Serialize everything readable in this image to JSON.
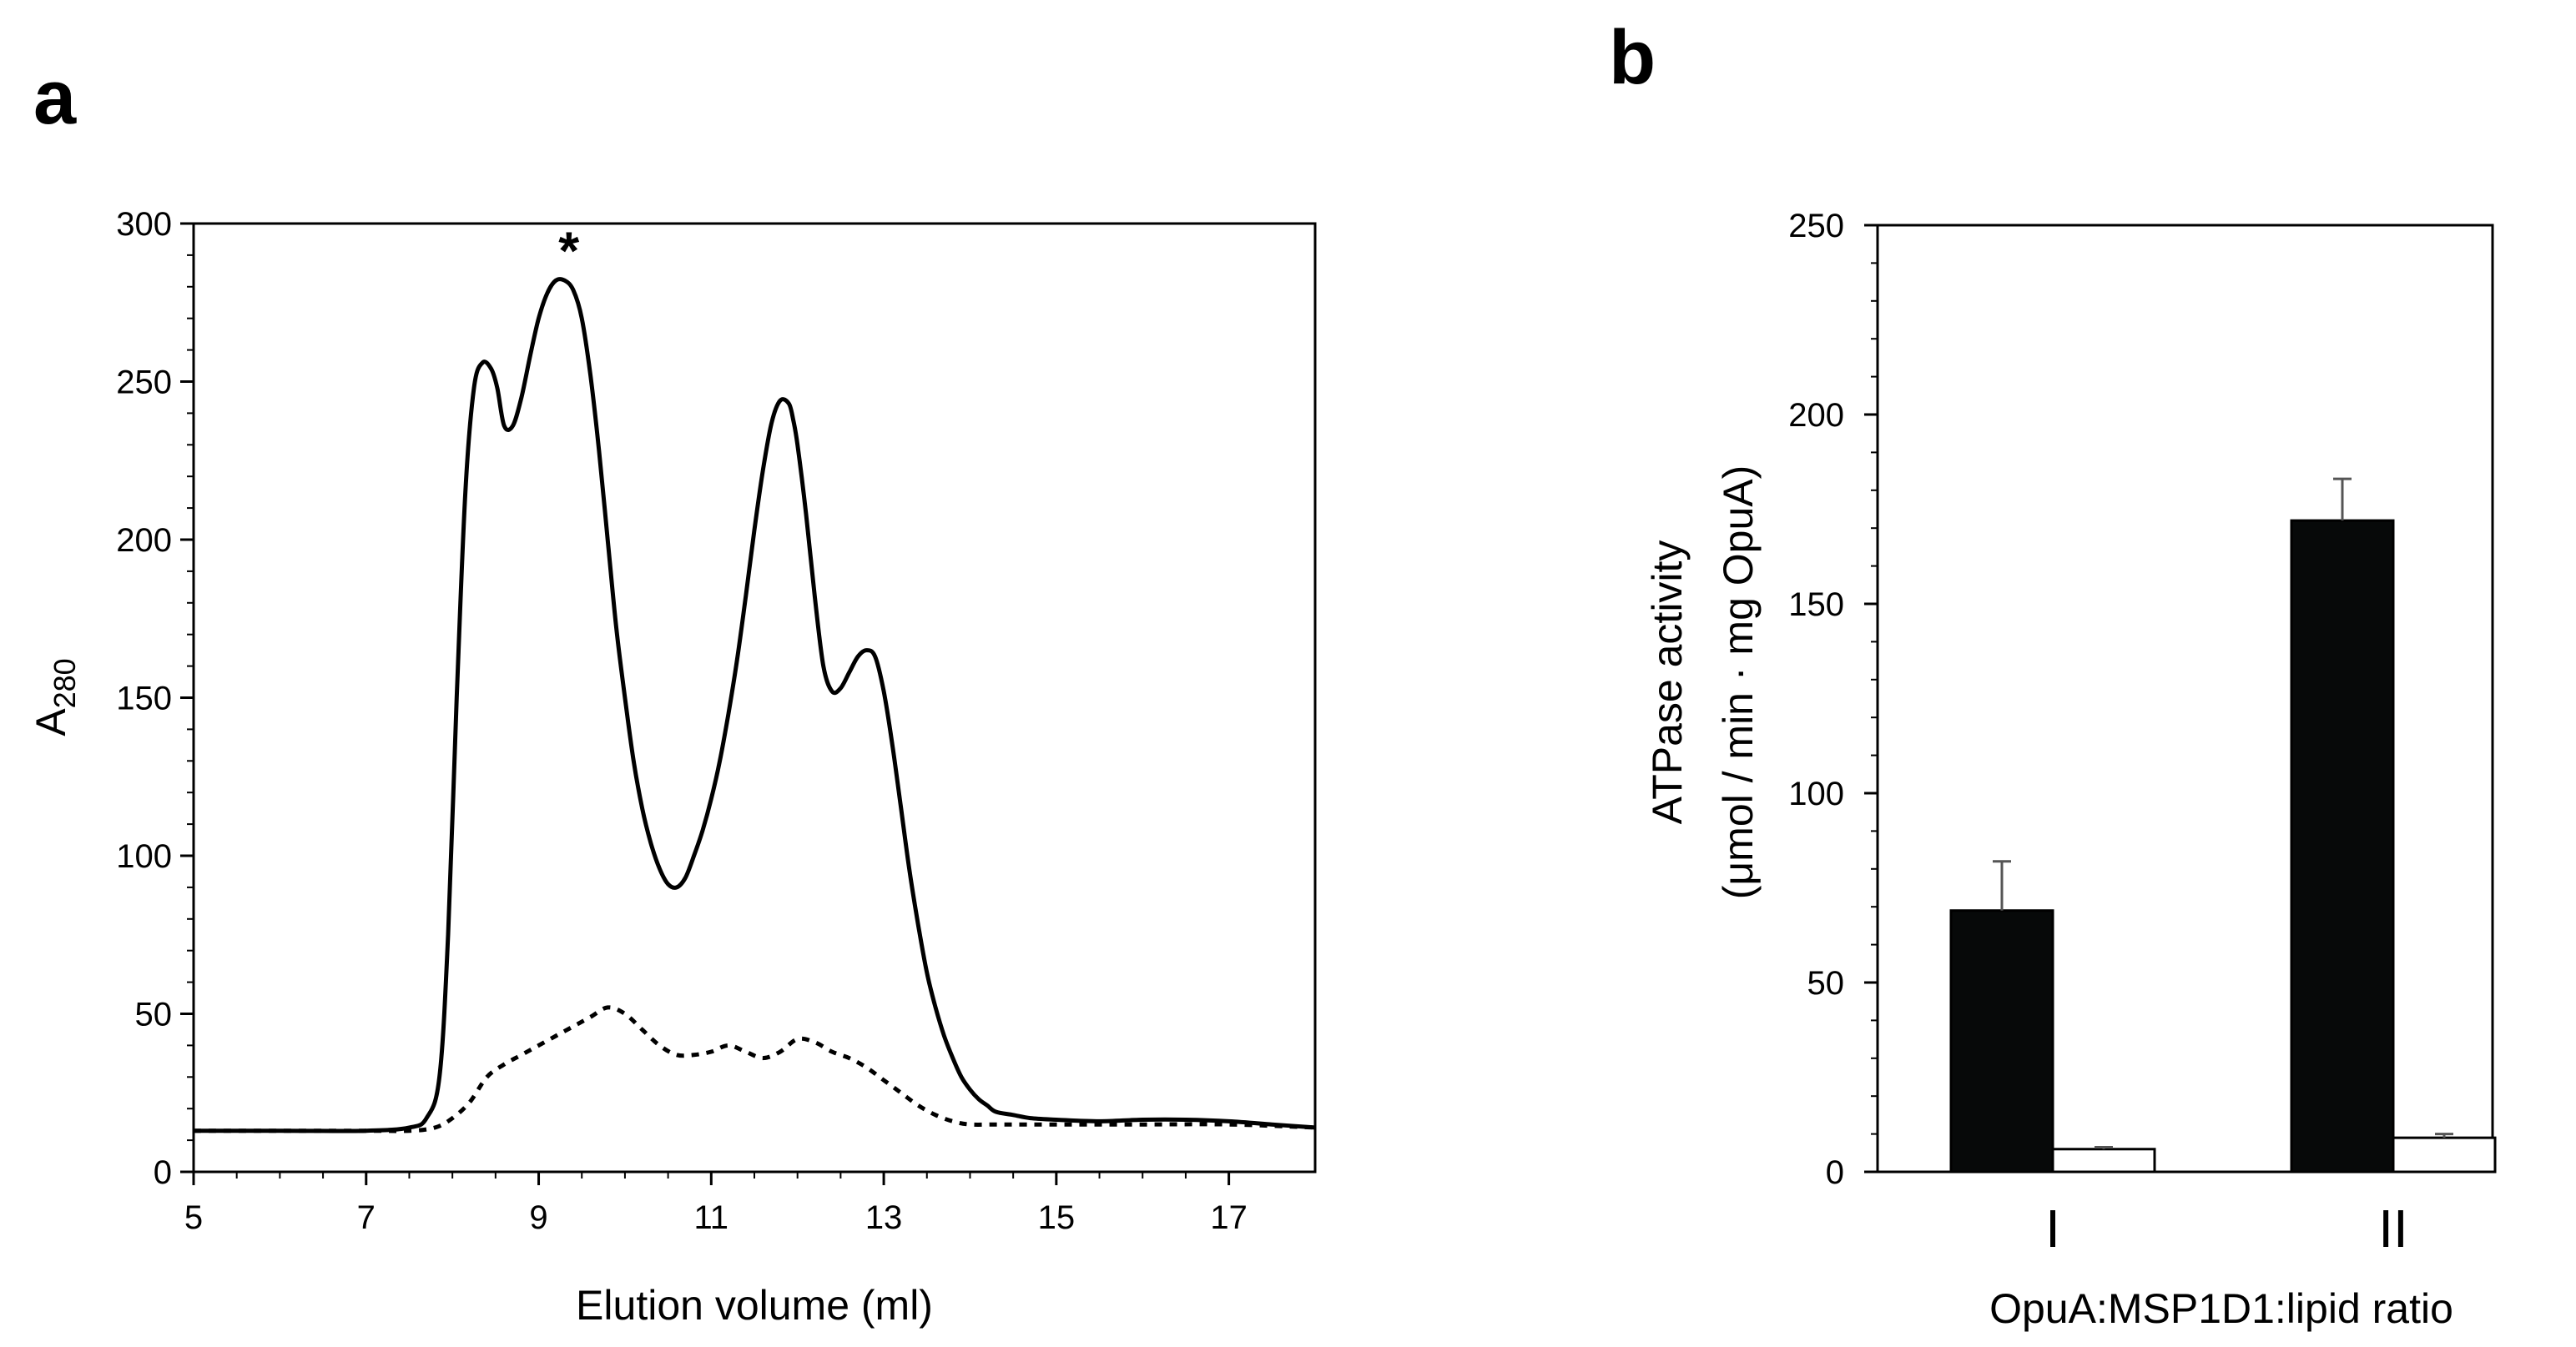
{
  "chart_data": [
    {
      "panel": "a",
      "type": "line",
      "title": "",
      "xlabel": "Elution volume (ml)",
      "ylabel_main": "A",
      "ylabel_sub": "280",
      "xlim": [
        5,
        18
      ],
      "ylim": [
        0,
        300
      ],
      "xticks": [
        5,
        7,
        9,
        11,
        13,
        15,
        17
      ],
      "yticks": [
        0,
        50,
        100,
        150,
        200,
        250,
        300
      ],
      "annotation": {
        "text": "*",
        "x": 9.35,
        "y": 283
      },
      "series": [
        {
          "name": "solid",
          "style": "solid",
          "x": [
            5,
            6,
            7,
            7.5,
            7.7,
            7.85,
            7.95,
            8.05,
            8.15,
            8.25,
            8.35,
            8.45,
            8.52,
            8.6,
            8.7,
            8.8,
            8.9,
            9.0,
            9.1,
            9.2,
            9.3,
            9.4,
            9.5,
            9.6,
            9.7,
            9.8,
            9.9,
            10.0,
            10.1,
            10.2,
            10.3,
            10.4,
            10.5,
            10.6,
            10.7,
            10.8,
            10.9,
            11.0,
            11.1,
            11.2,
            11.3,
            11.4,
            11.5,
            11.6,
            11.7,
            11.8,
            11.9,
            11.95,
            12.0,
            12.1,
            12.2,
            12.3,
            12.4,
            12.5,
            12.6,
            12.7,
            12.8,
            12.9,
            13.0,
            13.1,
            13.2,
            13.3,
            13.4,
            13.5,
            13.6,
            13.7,
            13.8,
            13.9,
            14.0,
            14.1,
            14.2,
            14.3,
            14.5,
            14.7,
            15.0,
            15.5,
            16.0,
            16.5,
            17.0,
            17.5,
            18.0
          ],
          "y": [
            13,
            13,
            13,
            14,
            17,
            30,
            75,
            150,
            215,
            248,
            256,
            254,
            248,
            236,
            236,
            245,
            258,
            270,
            278,
            282,
            282,
            279,
            270,
            252,
            228,
            200,
            172,
            150,
            130,
            115,
            104,
            96,
            91,
            90,
            93,
            100,
            108,
            118,
            130,
            145,
            162,
            182,
            203,
            222,
            237,
            244,
            243,
            238,
            230,
            208,
            182,
            160,
            152,
            153,
            158,
            163,
            165,
            163,
            152,
            135,
            115,
            95,
            78,
            63,
            52,
            43,
            36,
            30,
            26,
            23,
            21,
            19,
            18,
            17,
            16.5,
            16,
            16.5,
            16.5,
            16,
            15,
            14
          ]
        },
        {
          "name": "dashed",
          "style": "dashed",
          "x": [
            5,
            6,
            7,
            7.5,
            7.8,
            8.0,
            8.2,
            8.4,
            8.6,
            8.8,
            9.0,
            9.2,
            9.4,
            9.6,
            9.8,
            10.0,
            10.2,
            10.4,
            10.6,
            10.8,
            11.0,
            11.2,
            11.4,
            11.6,
            11.8,
            12.0,
            12.2,
            12.4,
            12.6,
            12.8,
            13.0,
            13.2,
            13.4,
            13.6,
            13.8,
            14.0,
            14.3,
            14.6,
            15.0,
            16.0,
            17.0,
            18.0
          ],
          "y": [
            13,
            13,
            13,
            13,
            14,
            17,
            22,
            30,
            34,
            37,
            40,
            43,
            46,
            49,
            52,
            50,
            45,
            40,
            37,
            37,
            38,
            40,
            38,
            36,
            38,
            42,
            41,
            38,
            36,
            33,
            29,
            25,
            21,
            18,
            16,
            15,
            15,
            15,
            15,
            15,
            15,
            14
          ]
        }
      ]
    },
    {
      "panel": "b",
      "type": "bar",
      "title": "",
      "xlabel": "OpuA:MSP1D1:lipid ratio",
      "ylabel_line1": "ATPase activity",
      "ylabel_line2": "(μmol / min · mg OpuA)",
      "ylim": [
        0,
        250
      ],
      "yticks": [
        0,
        50,
        100,
        150,
        200,
        250
      ],
      "categories": [
        "I",
        "II"
      ],
      "series": [
        {
          "name": "filled",
          "color": "#070909",
          "values": [
            69,
            172
          ],
          "errors": [
            13,
            11
          ]
        },
        {
          "name": "open",
          "color": "#ffffff",
          "values": [
            6,
            9
          ],
          "errors": [
            0.5,
            1
          ]
        }
      ]
    }
  ]
}
